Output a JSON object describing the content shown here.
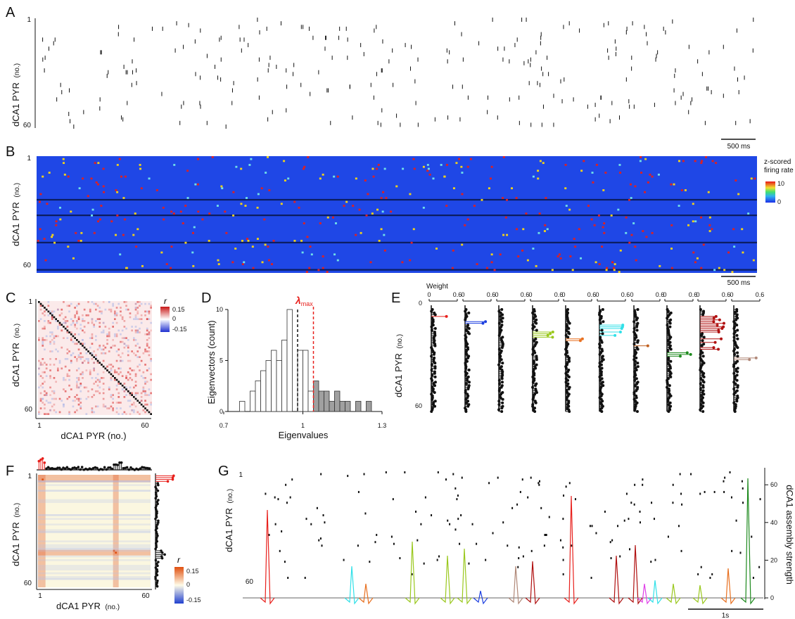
{
  "panels": {
    "A": {
      "label": "A",
      "ylabel": "dCA1 PYR",
      "ylabel_unit": "(no.)",
      "ytick_top": "1",
      "ytick_bottom": "60",
      "scalebar": "500 ms"
    },
    "B": {
      "label": "B",
      "ylabel": "dCA1 PYR",
      "ylabel_unit": "(no.)",
      "ytick_top": "1",
      "ytick_bottom": "60",
      "scalebar": "500 ms",
      "colorbar_title_1": "z-scored",
      "colorbar_title_2": "firing rate",
      "colorbar_max": "10",
      "colorbar_min": "0"
    },
    "C": {
      "label": "C",
      "ylabel": "dCA1 PYR",
      "ylabel_unit": "(no.)",
      "xlabel": "dCA1 PYR (no.)",
      "tick_1": "1",
      "tick_60": "60",
      "colorbar_title": "r",
      "cb_hi": "0.15",
      "cb_mid": "0",
      "cb_lo": "-0.15"
    },
    "D": {
      "label": "D",
      "ylabel": "Eigenvectors (count)",
      "xlabel": "Eigenvalues",
      "lambda_label": "λ",
      "lambda_sub": "max",
      "yticks": [
        "0",
        "5",
        "10"
      ],
      "xticks": [
        "0.7",
        "1",
        "1.3"
      ]
    },
    "E": {
      "label": "E",
      "title": "Weight",
      "ylabel": "dCA1 PYR",
      "ylabel_unit": "(no.)",
      "wtick_0": "0",
      "wtick_06": "0.6",
      "ytick_0": "0",
      "ytick_60": "60"
    },
    "F": {
      "label": "F",
      "ylabel": "dCA1 PYR",
      "ylabel_unit": "(no.)",
      "xlabel": "dCA1 PYR",
      "xlabel_unit": "(no.)",
      "tick_1": "1",
      "tick_60": "60",
      "colorbar_title": "r",
      "cb_hi": "0.15",
      "cb_mid": "0",
      "cb_lo": "-0.15"
    },
    "G": {
      "label": "G",
      "ylabel": "dCA1 PYR",
      "ylabel_unit": "(no.)",
      "ytick_top": "1",
      "ytick_bottom": "60",
      "ylabel_right": "dCA1 assembly strength",
      "right_ticks": [
        "0",
        "20",
        "40",
        "60"
      ],
      "scalebar": "1s"
    }
  },
  "colors": {
    "heat_bg": "#1f47e6",
    "heat_cell_red": "#e02020",
    "heat_cell_yellow": "#f2d21a",
    "heat_cell_cyan": "#6fe0e8",
    "lambda": "#e8201c",
    "assemblies": [
      "#e8201c",
      "#1c3fe0",
      "#e040e8",
      "#9ac81e",
      "#e87020",
      "#30e0e8",
      "#c06020",
      "#1e8a1e",
      "#b01010",
      "#b08878"
    ]
  },
  "chart_data": [
    {
      "type": "bar",
      "panel": "D",
      "title": "",
      "xlabel": "Eigenvalues",
      "ylabel": "Eigenvectors (count)",
      "xlim": [
        0.7,
        1.3
      ],
      "ylim": [
        0,
        10
      ],
      "bin_centers": [
        0.77,
        0.81,
        0.83,
        0.85,
        0.87,
        0.89,
        0.91,
        0.93,
        0.95,
        0.97,
        0.99,
        1.01,
        1.03,
        1.05,
        1.07,
        1.09,
        1.11,
        1.13,
        1.15,
        1.17,
        1.19,
        1.21,
        1.23,
        1.25,
        1.27
      ],
      "values": [
        1,
        2,
        3,
        4,
        5,
        6,
        5,
        7,
        10,
        0,
        6,
        6,
        2,
        3,
        2,
        2,
        1,
        2,
        1,
        1,
        0,
        1,
        0,
        1,
        0
      ],
      "lambda_max": 1.04,
      "dashed_black": 0.98,
      "series": [
        {
          "name": "",
          "role": "below lambda_max",
          "fill": "#ffffff"
        },
        {
          "name": "",
          "role": "above lambda_max",
          "fill": "#a0a0a0"
        }
      ]
    }
  ]
}
